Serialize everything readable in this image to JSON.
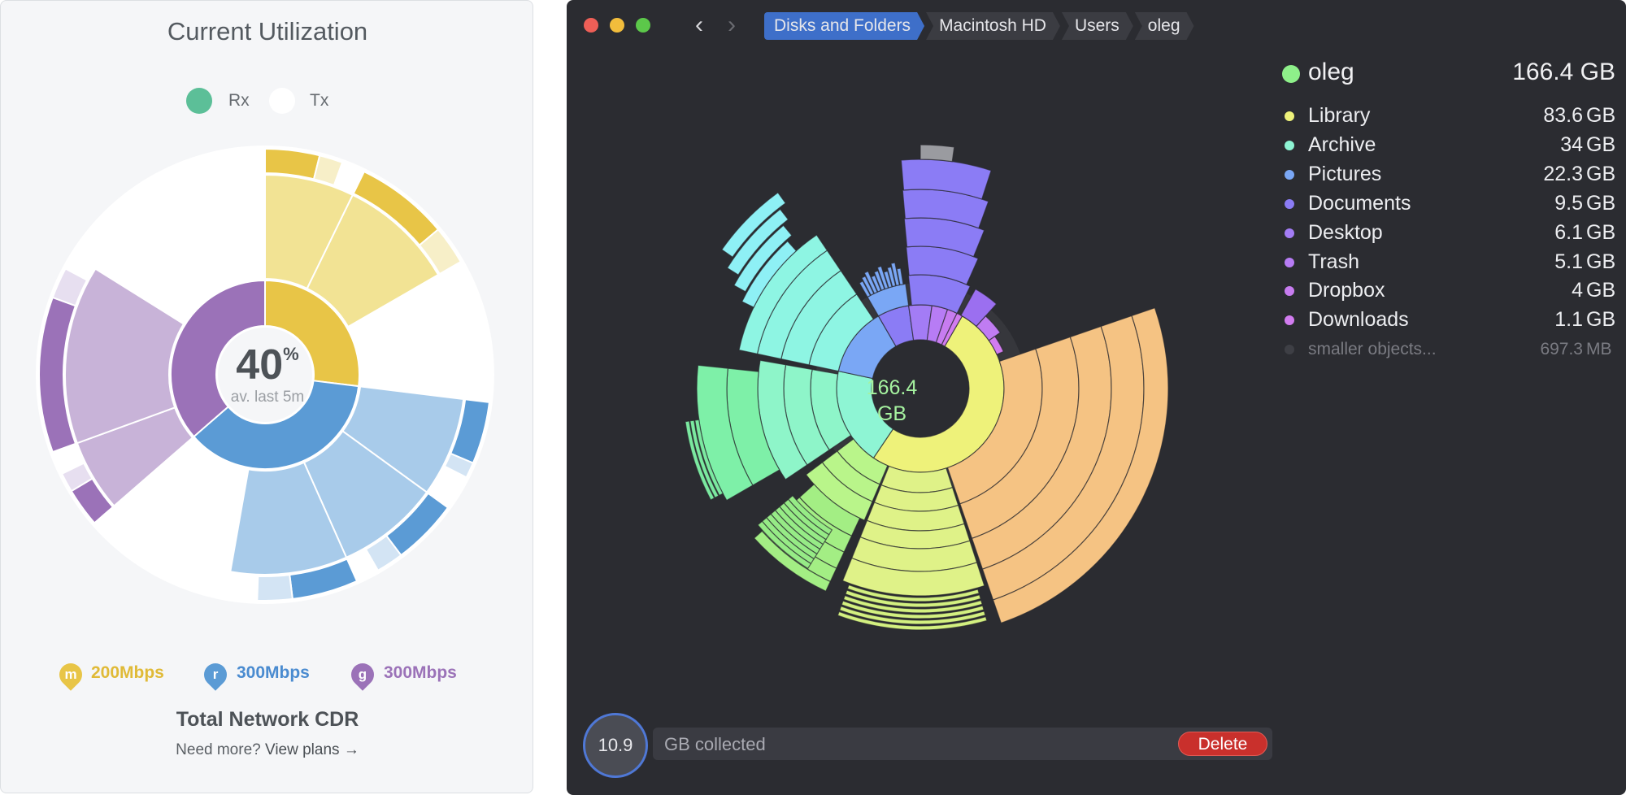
{
  "utilization": {
    "title": "Current Utilization",
    "legend": [
      {
        "label": "Rx",
        "color": "#5cbf98"
      },
      {
        "label": "Tx",
        "color": "#ffffff"
      }
    ],
    "center_value": "40",
    "center_unit": "%",
    "center_caption": "av. last 5m",
    "rates": [
      {
        "badge": "m",
        "value": "200Mbps",
        "color": "#e8c547"
      },
      {
        "badge": "r",
        "value": "300Mbps",
        "color": "#5b9bd5"
      },
      {
        "badge": "g",
        "value": "300Mbps",
        "color": "#9b72b8"
      }
    ],
    "footer_title": "Total Network CDR",
    "footer_prompt": "Need more?",
    "footer_link": "View plans",
    "footer_arrow": "→",
    "colors": {
      "yellow": "#e8c547",
      "yellow_light": "#f2e394",
      "yellow_faint": "#f7efc8",
      "blue": "#5b9bd5",
      "blue_light": "#a8cbea",
      "blue_faint": "#d3e4f4",
      "purple": "#9b72b8",
      "purple_light": "#c8b3d8",
      "purple_faint": "#e7dff0"
    }
  },
  "disk_window": {
    "breadcrumbs": [
      "Disks and Folders",
      "Macintosh HD",
      "Users",
      "oleg"
    ],
    "center_value": "166.4",
    "center_unit": "GB",
    "root": {
      "name": "oleg",
      "size": "166.4 GB",
      "color": "#8ef08a"
    },
    "items": [
      {
        "name": "Library",
        "num": "83.6",
        "unit": "GB",
        "color": "#eef27a"
      },
      {
        "name": "Archive",
        "num": "34",
        "unit": "GB",
        "color": "#8ef5d4"
      },
      {
        "name": "Pictures",
        "num": "22.3",
        "unit": "GB",
        "color": "#7aa7f5"
      },
      {
        "name": "Documents",
        "num": "9.5",
        "unit": "GB",
        "color": "#8b7cf5"
      },
      {
        "name": "Desktop",
        "num": "6.1",
        "unit": "GB",
        "color": "#a37cf5"
      },
      {
        "name": "Trash",
        "num": "5.1",
        "unit": "GB",
        "color": "#b77cf5"
      },
      {
        "name": "Dropbox",
        "num": "4",
        "unit": "GB",
        "color": "#c77cf0"
      },
      {
        "name": "Downloads",
        "num": "1.1",
        "unit": "GB",
        "color": "#d27cf0"
      }
    ],
    "smaller": {
      "name": "smaller objects...",
      "num": "697.3",
      "unit": "MB"
    },
    "collected_value": "10.9",
    "collected_label": "GB collected",
    "delete_label": "Delete"
  }
}
